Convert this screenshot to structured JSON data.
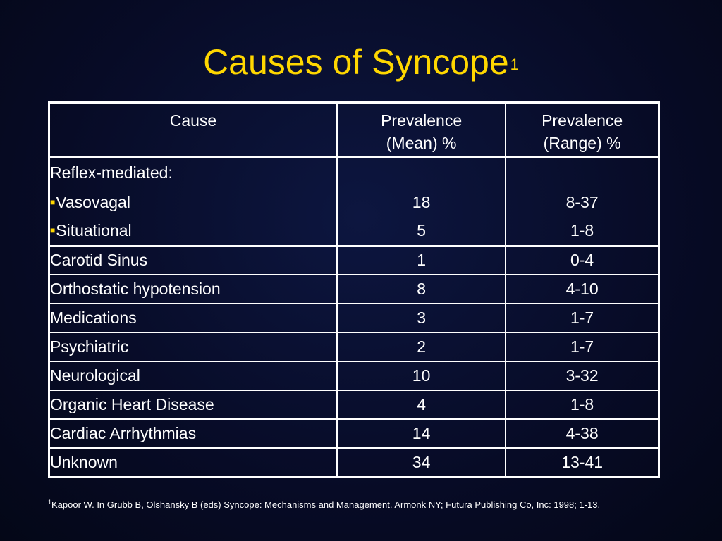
{
  "title": {
    "text": "Causes of Syncope",
    "superscript": "1"
  },
  "table": {
    "headers": {
      "cause": "Cause",
      "mean_line1": "Prevalence",
      "mean_line2": "(Mean) %",
      "range_line1": "Prevalence",
      "range_line2": "(Range) %"
    },
    "group": {
      "label": "Reflex-mediated:",
      "bullet_icon": "square-bullet-icon",
      "bullet_color": "#ffd700",
      "items": [
        {
          "cause": "Vasovagal",
          "mean": "18",
          "range": "8-37"
        },
        {
          "cause": "Situational",
          "mean": "5",
          "range": "1-8"
        }
      ]
    },
    "rows": [
      {
        "cause": "Carotid Sinus",
        "mean": "1",
        "range": "0-4"
      },
      {
        "cause": "Orthostatic hypotension",
        "mean": "8",
        "range": "4-10"
      },
      {
        "cause": "Medications",
        "mean": "3",
        "range": "1-7"
      },
      {
        "cause": "Psychiatric",
        "mean": "2",
        "range": "1-7"
      },
      {
        "cause": "Neurological",
        "mean": "10",
        "range": "3-32"
      },
      {
        "cause": "Organic Heart Disease",
        "mean": "4",
        "range": "1-8"
      },
      {
        "cause": "Cardiac Arrhythmias",
        "mean": "14",
        "range": "4-38"
      },
      {
        "cause": "Unknown",
        "mean": "34",
        "range": "13-41"
      }
    ]
  },
  "footnote": {
    "marker": "1",
    "prefix": "Kapoor W. In Grubb B, Olshansky B (eds) ",
    "book": "Syncope: Mechanisms and Management",
    "suffix": ".  Armonk NY; Futura Publishing Co, Inc: 1998; 1-13."
  },
  "colors": {
    "background": "#070b26",
    "title": "#ffd700",
    "text": "#ffffff",
    "table_border": "#ffffff"
  }
}
